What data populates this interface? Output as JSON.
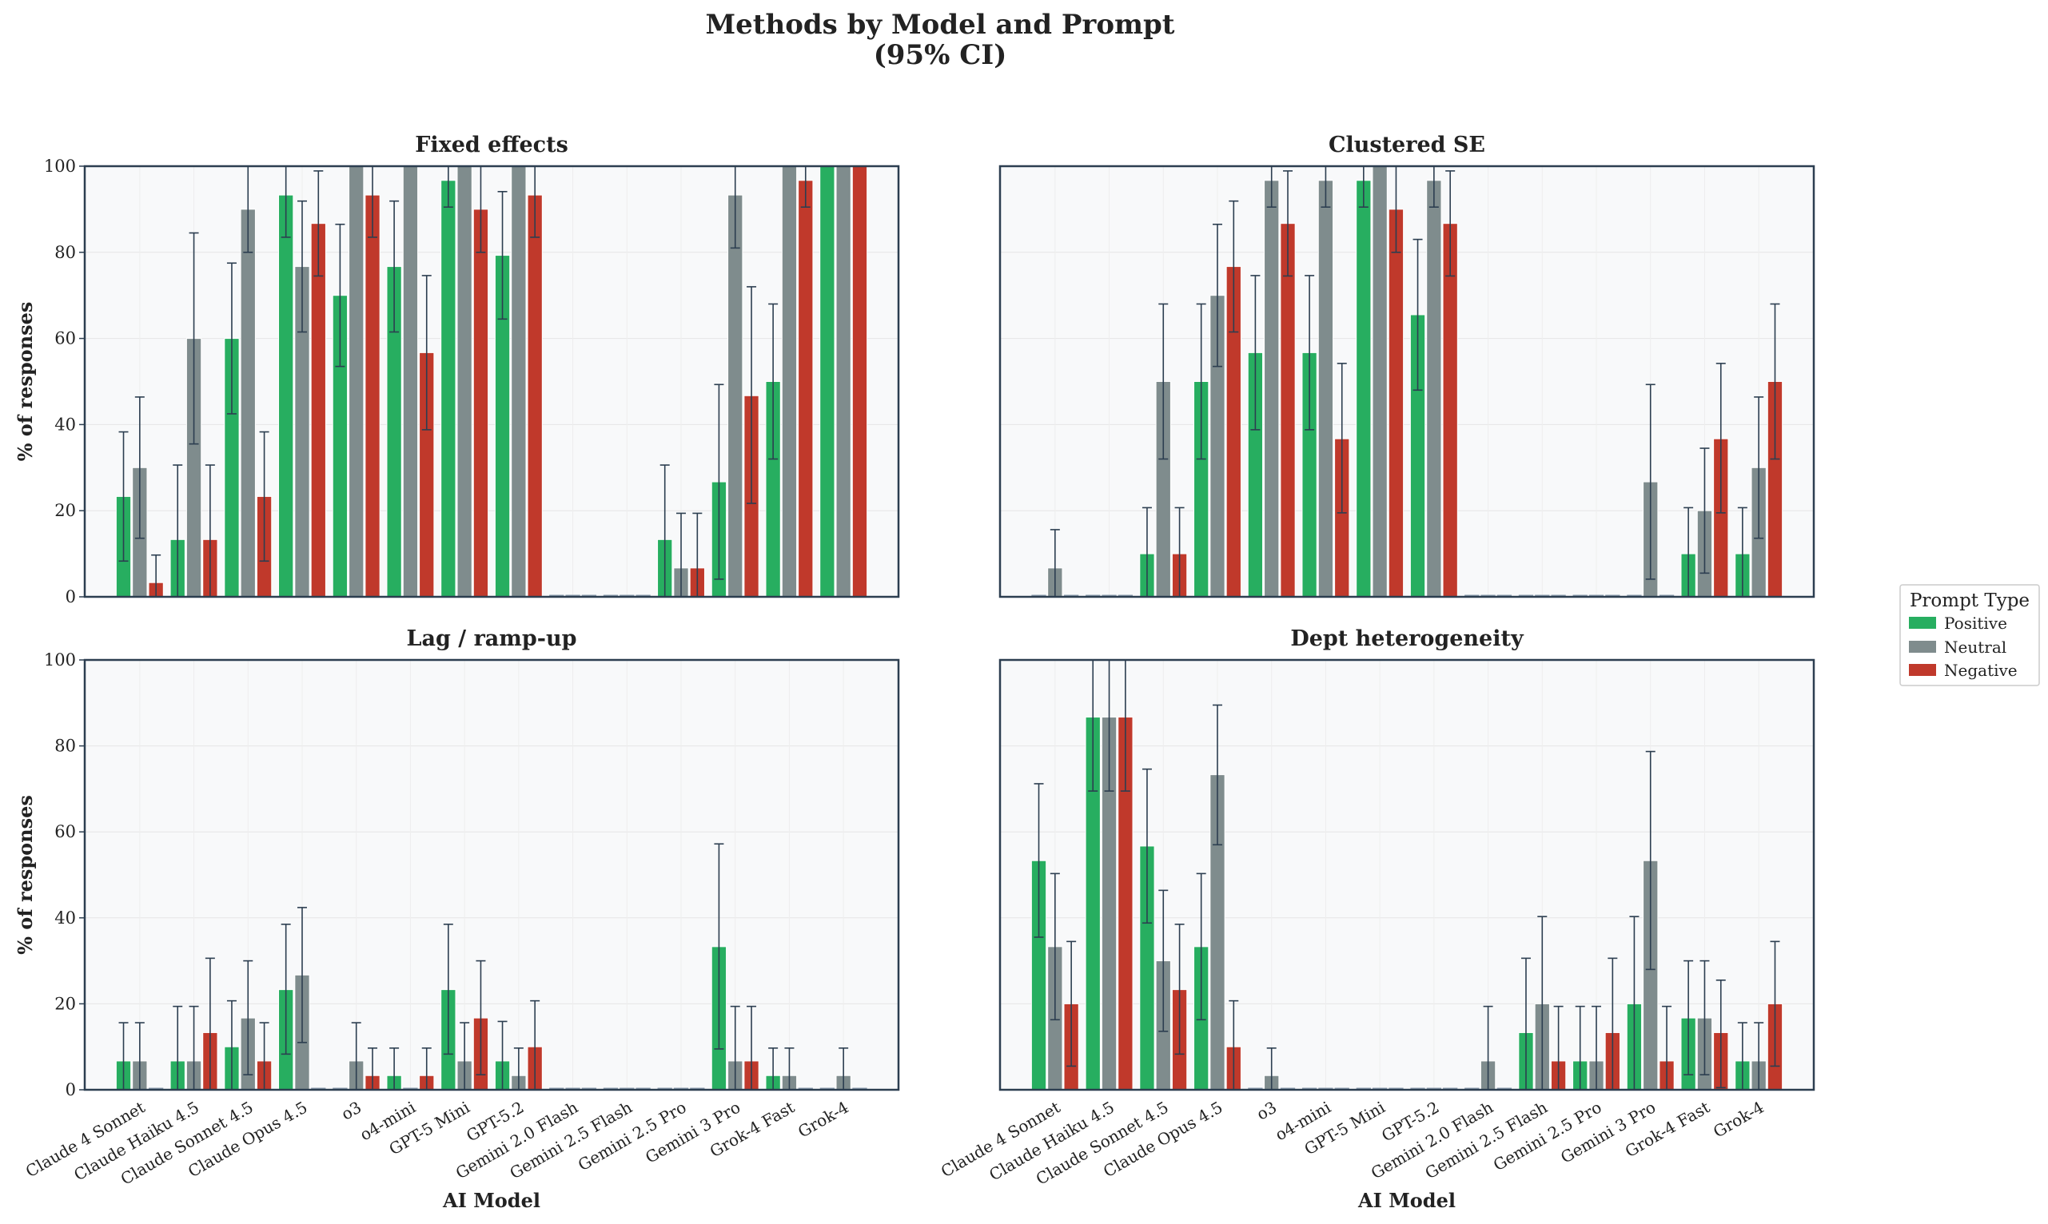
{
  "title_line1": "Methods by Model and Prompt",
  "title_line2": "(95% CI)",
  "legend": {
    "title": "Prompt Type",
    "entries": [
      {
        "name": "Positive",
        "color": "#27ae60"
      },
      {
        "name": "Neutral",
        "color": "#7f8c8d"
      },
      {
        "name": "Negative",
        "color": "#c0392b"
      }
    ]
  },
  "chart_data": [
    {
      "type": "bar",
      "title": "Fixed effects",
      "ylabel": "% of responses",
      "xlabel": "",
      "ylim": [
        0,
        100
      ],
      "yticks": [
        0,
        20,
        40,
        60,
        80,
        100
      ],
      "categories": [
        "Claude 4 Sonnet",
        "Claude Haiku 4.5",
        "Claude Sonnet 4.5",
        "Claude Opus 4.5",
        "o3",
        "o4-mini",
        "GPT-5 Mini",
        "GPT-5.2",
        "Gemini 2.0 Flash",
        "Gemini 2.5 Flash",
        "Gemini 2.5 Pro",
        "Gemini 3 Pro",
        "Grok-4 Fast",
        "Grok-4"
      ],
      "series": [
        {
          "name": "Positive",
          "values": [
            23.3,
            13.3,
            60,
            93.3,
            70,
            76.7,
            96.7,
            79.3,
            0,
            0,
            13.3,
            26.7,
            50,
            100
          ],
          "ci_low": [
            8.3,
            0,
            42.5,
            83.5,
            53.5,
            61.5,
            90.5,
            64.5,
            0,
            0,
            0,
            4.1,
            32,
            100
          ],
          "ci_high": [
            38.3,
            30.6,
            77.5,
            100,
            86.5,
            91.9,
            100,
            94.1,
            0,
            0,
            30.6,
            49.3,
            68,
            100
          ]
        },
        {
          "name": "Neutral",
          "values": [
            30,
            60,
            90,
            76.7,
            100,
            100,
            100,
            100,
            0,
            0,
            6.7,
            93.3,
            100,
            100
          ],
          "ci_low": [
            13.6,
            35.5,
            80,
            61.5,
            100,
            100,
            100,
            100,
            0,
            0,
            0,
            81,
            100,
            100
          ],
          "ci_high": [
            46.4,
            84.5,
            100,
            91.9,
            100,
            100,
            100,
            100,
            0,
            0,
            19.4,
            100,
            100,
            100
          ]
        },
        {
          "name": "Negative",
          "values": [
            3.3,
            13.3,
            23.3,
            86.7,
            93.3,
            56.7,
            90,
            93.3,
            0,
            0,
            6.7,
            46.7,
            96.7,
            100
          ],
          "ci_low": [
            0,
            0,
            8.3,
            74.5,
            83.5,
            38.8,
            80,
            83.5,
            0,
            0,
            0,
            21.7,
            90.5,
            100
          ],
          "ci_high": [
            9.7,
            30.6,
            38.3,
            98.9,
            100,
            74.6,
            100,
            100,
            0,
            0,
            19.4,
            72,
            100,
            100
          ]
        }
      ]
    },
    {
      "type": "bar",
      "title": "Clustered SE",
      "ylabel": "",
      "xlabel": "",
      "ylim": [
        0,
        100
      ],
      "categories": [
        "Claude 4 Sonnet",
        "Claude Haiku 4.5",
        "Claude Sonnet 4.5",
        "Claude Opus 4.5",
        "o3",
        "o4-mini",
        "GPT-5 Mini",
        "GPT-5.2",
        "Gemini 2.0 Flash",
        "Gemini 2.5 Flash",
        "Gemini 2.5 Pro",
        "Gemini 3 Pro",
        "Grok-4 Fast",
        "Grok-4"
      ],
      "series": [
        {
          "name": "Positive",
          "values": [
            0,
            0,
            10,
            50,
            56.7,
            56.7,
            96.7,
            65.5,
            0,
            0,
            0,
            0,
            10,
            10
          ],
          "ci_low": [
            0,
            0,
            0,
            32,
            38.8,
            38.8,
            90.5,
            48,
            0,
            0,
            0,
            0,
            0,
            0
          ],
          "ci_high": [
            0,
            0,
            20.7,
            68,
            74.6,
            74.6,
            100,
            83,
            0,
            0,
            0,
            0,
            20.7,
            20.7
          ]
        },
        {
          "name": "Neutral",
          "values": [
            6.7,
            0,
            50,
            70,
            96.7,
            96.7,
            100,
            96.7,
            0,
            0,
            0,
            26.7,
            20,
            30
          ],
          "ci_low": [
            0,
            0,
            32,
            53.5,
            90.5,
            90.5,
            100,
            90.5,
            0,
            0,
            0,
            4.1,
            5.5,
            13.6
          ],
          "ci_high": [
            15.6,
            0,
            68,
            86.5,
            100,
            100,
            100,
            100,
            0,
            0,
            0,
            49.3,
            34.5,
            46.4
          ]
        },
        {
          "name": "Negative",
          "values": [
            0,
            0,
            10,
            76.7,
            86.7,
            36.7,
            90,
            86.7,
            0,
            0,
            0,
            0,
            36.7,
            50
          ],
          "ci_low": [
            0,
            0,
            0,
            61.5,
            74.5,
            19.5,
            80,
            74.5,
            0,
            0,
            0,
            0,
            19.5,
            32
          ],
          "ci_high": [
            0,
            0,
            20.7,
            91.9,
            98.9,
            54.2,
            100,
            98.9,
            0,
            0,
            0,
            0,
            54.2,
            68
          ]
        }
      ]
    },
    {
      "type": "bar",
      "title": "Lag / ramp-up",
      "ylabel": "% of responses",
      "xlabel": "AI Model",
      "ylim": [
        0,
        100
      ],
      "yticks": [
        0,
        20,
        40,
        60,
        80,
        100
      ],
      "categories": [
        "Claude 4 Sonnet",
        "Claude Haiku 4.5",
        "Claude Sonnet 4.5",
        "Claude Opus 4.5",
        "o3",
        "o4-mini",
        "GPT-5 Mini",
        "GPT-5.2",
        "Gemini 2.0 Flash",
        "Gemini 2.5 Flash",
        "Gemini 2.5 Pro",
        "Gemini 3 Pro",
        "Grok-4 Fast",
        "Grok-4"
      ],
      "series": [
        {
          "name": "Positive",
          "values": [
            6.7,
            6.7,
            10,
            23.3,
            0,
            3.3,
            23.3,
            6.7,
            0,
            0,
            0,
            33.3,
            3.3,
            0
          ],
          "ci_low": [
            0,
            0,
            0,
            8.3,
            0,
            0,
            8.3,
            0,
            0,
            0,
            0,
            9.5,
            0,
            0
          ],
          "ci_high": [
            15.6,
            19.4,
            20.7,
            38.5,
            0,
            9.7,
            38.5,
            15.9,
            0,
            0,
            0,
            57.2,
            9.7,
            0
          ]
        },
        {
          "name": "Neutral",
          "values": [
            6.7,
            6.7,
            16.7,
            26.7,
            6.7,
            0,
            6.7,
            3.3,
            0,
            0,
            0,
            6.7,
            3.3,
            3.3
          ],
          "ci_low": [
            0,
            0,
            3.5,
            11,
            0,
            0,
            0,
            0,
            0,
            0,
            0,
            0,
            0,
            0
          ],
          "ci_high": [
            15.6,
            19.4,
            30,
            42.4,
            15.6,
            0,
            15.6,
            9.7,
            0,
            0,
            0,
            19.4,
            9.7,
            9.7
          ]
        },
        {
          "name": "Negative",
          "values": [
            0,
            13.3,
            6.7,
            0,
            3.3,
            3.3,
            16.7,
            10,
            0,
            0,
            0,
            6.7,
            0,
            0
          ],
          "ci_low": [
            0,
            0,
            0,
            0,
            0,
            0,
            3.5,
            0,
            0,
            0,
            0,
            0,
            0,
            0
          ],
          "ci_high": [
            0,
            30.6,
            15.6,
            0,
            9.7,
            9.7,
            30,
            20.7,
            0,
            0,
            0,
            19.4,
            0,
            0
          ]
        }
      ]
    },
    {
      "type": "bar",
      "title": "Dept heterogeneity",
      "ylabel": "",
      "xlabel": "AI Model",
      "ylim": [
        0,
        100
      ],
      "categories": [
        "Claude 4 Sonnet",
        "Claude Haiku 4.5",
        "Claude Sonnet 4.5",
        "Claude Opus 4.5",
        "o3",
        "o4-mini",
        "GPT-5 Mini",
        "GPT-5.2",
        "Gemini 2.0 Flash",
        "Gemini 2.5 Flash",
        "Gemini 2.5 Pro",
        "Gemini 3 Pro",
        "Grok-4 Fast",
        "Grok-4"
      ],
      "series": [
        {
          "name": "Positive",
          "values": [
            53.3,
            86.7,
            56.7,
            33.3,
            0,
            0,
            0,
            0,
            0,
            13.3,
            6.7,
            20,
            16.7,
            6.7
          ],
          "ci_low": [
            35.5,
            69.5,
            38.8,
            16.3,
            0,
            0,
            0,
            0,
            0,
            0,
            0,
            0,
            3.5,
            0
          ],
          "ci_high": [
            71.2,
            100,
            74.6,
            50.3,
            0,
            0,
            0,
            0,
            0,
            30.6,
            19.4,
            40.3,
            30,
            15.6
          ]
        },
        {
          "name": "Neutral",
          "values": [
            33.3,
            86.7,
            30,
            73.3,
            3.3,
            0,
            0,
            0,
            6.7,
            20,
            6.7,
            53.3,
            16.7,
            6.7
          ],
          "ci_low": [
            16.3,
            69.5,
            13.6,
            57,
            0,
            0,
            0,
            0,
            0,
            0,
            0,
            28,
            3.5,
            0
          ],
          "ci_high": [
            50.3,
            100,
            46.4,
            89.5,
            9.7,
            0,
            0,
            0,
            19.4,
            40.3,
            19.4,
            78.7,
            30,
            15.6
          ]
        },
        {
          "name": "Negative",
          "values": [
            20,
            86.7,
            23.3,
            10,
            0,
            0,
            0,
            0,
            0,
            6.7,
            13.3,
            6.7,
            13.3,
            20
          ],
          "ci_low": [
            5.5,
            69.5,
            8.3,
            0,
            0,
            0,
            0,
            0,
            0,
            0,
            0,
            0,
            0.5,
            5.5
          ],
          "ci_high": [
            34.5,
            100,
            38.5,
            20.7,
            0,
            0,
            0,
            0,
            0,
            19.4,
            30.6,
            19.4,
            25.5,
            34.5
          ]
        }
      ]
    }
  ]
}
